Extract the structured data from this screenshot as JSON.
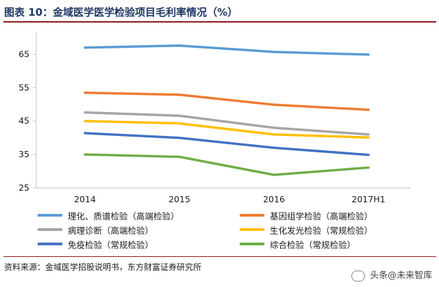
{
  "title": "图表 10：金域医学医学检验项目毛利率情况（%）",
  "source": "资料来源：金域医学招股说明书，东方财富证券研究所",
  "watermark": "头条@未来智库",
  "chart_data": {
    "type": "line",
    "x": [
      "2014",
      "2015",
      "2016",
      "2017H1"
    ],
    "ylim": [
      25,
      70
    ],
    "yticks": [
      25,
      35,
      45,
      55,
      65
    ],
    "grid": false,
    "legend_position": "bottom",
    "series": [
      {
        "name": "理化、质谱检验（高端检验）",
        "color": "#5b9bd5",
        "values": [
          67.0,
          67.6,
          65.7,
          64.9
        ]
      },
      {
        "name": "基因组学检验（高端检验）",
        "color": "#ed7d31",
        "values": [
          53.5,
          52.9,
          49.9,
          48.4
        ]
      },
      {
        "name": "病理诊断（高端检验）",
        "color": "#a5a5a5",
        "values": [
          47.6,
          46.6,
          43.0,
          41.0
        ]
      },
      {
        "name": "生化发光检验（常规检验）",
        "color": "#ffc000",
        "values": [
          45.0,
          44.3,
          41.0,
          40.1
        ]
      },
      {
        "name": "免疫检验（常规检验）",
        "color": "#4472c4",
        "values": [
          41.4,
          40.0,
          37.0,
          34.9
        ]
      },
      {
        "name": "综合检验（常规检验）",
        "color": "#70ad47",
        "values": [
          35.0,
          34.3,
          28.9,
          31.1
        ]
      }
    ]
  }
}
